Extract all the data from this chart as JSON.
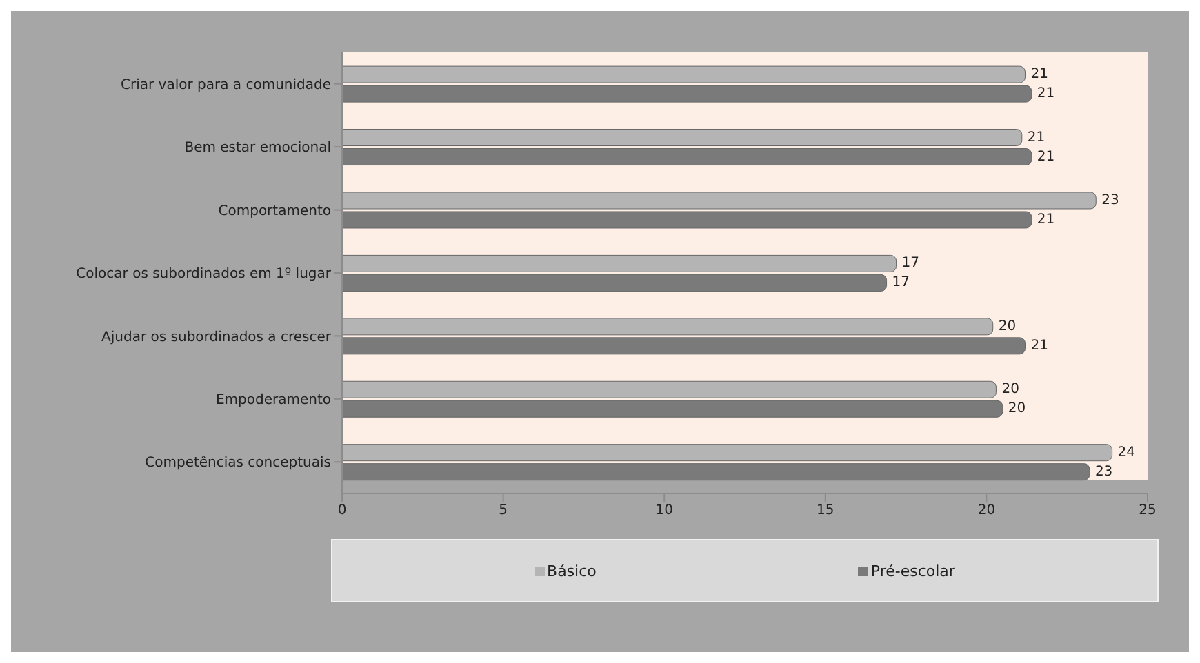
{
  "chart_data": {
    "type": "bar",
    "orientation": "horizontal",
    "categories": [
      "Criar  valor para a comunidade",
      "Bem estar emocional",
      "Comportamento",
      "Colocar os subordinados em 1º lugar",
      "Ajudar os subordinados a crescer",
      "Empoderamento",
      "Competências conceptuais"
    ],
    "series": [
      {
        "name": "Básico",
        "color": "#b4b4b4",
        "values": [
          21.2,
          21.1,
          23.4,
          17.2,
          20.2,
          20.3,
          23.9
        ],
        "value_labels": [
          "21",
          "21",
          "23",
          "17",
          "20",
          "20",
          "24"
        ]
      },
      {
        "name": "Pré-escolar",
        "color": "#7a7a7a",
        "values": [
          21.4,
          21.4,
          21.4,
          16.9,
          21.2,
          20.5,
          23.2
        ],
        "value_labels": [
          "21",
          "21",
          "21",
          "17",
          "21",
          "20",
          "23"
        ]
      }
    ],
    "xlim": [
      0,
      25
    ],
    "xticks": [
      0,
      5,
      10,
      15,
      20,
      25
    ],
    "grid": false,
    "legend": "bottom"
  }
}
